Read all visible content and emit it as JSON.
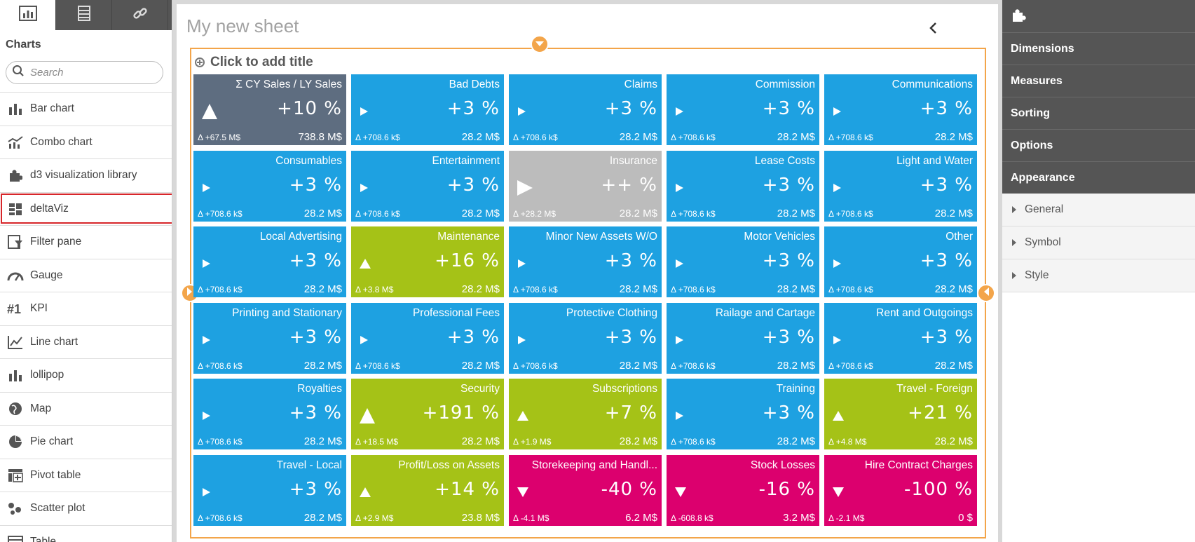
{
  "left_tabs": [
    {
      "icon": "chart-icon"
    },
    {
      "icon": "table-icon"
    },
    {
      "icon": "link-icon"
    }
  ],
  "charts_heading": "Charts",
  "search": {
    "placeholder": "Search"
  },
  "chart_list": [
    {
      "label": "Bar chart",
      "icon": "bar-chart-icon"
    },
    {
      "label": "Combo chart",
      "icon": "combo-chart-icon"
    },
    {
      "label": "d3 visualization library",
      "icon": "puzzle-icon"
    },
    {
      "label": "deltaViz",
      "icon": "deltaviz-icon",
      "selected": true
    },
    {
      "label": "Filter pane",
      "icon": "filter-pane-icon"
    },
    {
      "label": "Gauge",
      "icon": "gauge-icon"
    },
    {
      "label": "KPI",
      "icon": "kpi-icon"
    },
    {
      "label": "Line chart",
      "icon": "line-chart-icon"
    },
    {
      "label": "lollipop",
      "icon": "lollipop-icon"
    },
    {
      "label": "Map",
      "icon": "map-icon"
    },
    {
      "label": "Pie chart",
      "icon": "pie-chart-icon"
    },
    {
      "label": "Pivot table",
      "icon": "pivot-table-icon"
    },
    {
      "label": "Scatter plot",
      "icon": "scatter-plot-icon"
    },
    {
      "label": "Table",
      "icon": "table-list-icon"
    }
  ],
  "sheet": {
    "title": "My new sheet",
    "add_title": "Click to add title"
  },
  "colors": {
    "blue": "#1ea1e1",
    "green": "#a5c217",
    "magenta": "#dc006e",
    "slate": "#5e6d80",
    "grey": "#bcbcbc",
    "handle": "#f3a54a"
  },
  "tiles": [
    {
      "name": "Σ CY Sales / LY Sales",
      "pct": "+10 %",
      "delta": "Δ +67.5 M$",
      "value": "738.8 M$",
      "color": "slate",
      "symbol": "up-big"
    },
    {
      "name": "Bad Debts",
      "pct": "+3 %",
      "delta": "Δ +708.6 k$",
      "value": "28.2 M$",
      "color": "blue",
      "symbol": "right"
    },
    {
      "name": "Claims",
      "pct": "+3 %",
      "delta": "Δ +708.6 k$",
      "value": "28.2 M$",
      "color": "blue",
      "symbol": "right"
    },
    {
      "name": "Commission",
      "pct": "+3 %",
      "delta": "Δ +708.6 k$",
      "value": "28.2 M$",
      "color": "blue",
      "symbol": "right"
    },
    {
      "name": "Communications",
      "pct": "+3 %",
      "delta": "Δ +708.6 k$",
      "value": "28.2 M$",
      "color": "blue",
      "symbol": "right"
    },
    {
      "name": "Consumables",
      "pct": "+3 %",
      "delta": "Δ +708.6 k$",
      "value": "28.2 M$",
      "color": "blue",
      "symbol": "right"
    },
    {
      "name": "Entertainment",
      "pct": "+3 %",
      "delta": "Δ +708.6 k$",
      "value": "28.2 M$",
      "color": "blue",
      "symbol": "right"
    },
    {
      "name": "Insurance",
      "pct": "++ %",
      "delta": "Δ +28.2 M$",
      "value": "28.2 M$",
      "color": "grey",
      "symbol": "right-big"
    },
    {
      "name": "Lease Costs",
      "pct": "+3 %",
      "delta": "Δ +708.6 k$",
      "value": "28.2 M$",
      "color": "blue",
      "symbol": "right"
    },
    {
      "name": "Light and Water",
      "pct": "+3 %",
      "delta": "Δ +708.6 k$",
      "value": "28.2 M$",
      "color": "blue",
      "symbol": "right"
    },
    {
      "name": "Local Advertising",
      "pct": "+3 %",
      "delta": "Δ +708.6 k$",
      "value": "28.2 M$",
      "color": "blue",
      "symbol": "right"
    },
    {
      "name": "Maintenance",
      "pct": "+16 %",
      "delta": "Δ +3.8 M$",
      "value": "28.2 M$",
      "color": "green",
      "symbol": "up"
    },
    {
      "name": "Minor New Assets W/O",
      "pct": "+3 %",
      "delta": "Δ +708.6 k$",
      "value": "28.2 M$",
      "color": "blue",
      "symbol": "right"
    },
    {
      "name": "Motor Vehicles",
      "pct": "+3 %",
      "delta": "Δ +708.6 k$",
      "value": "28.2 M$",
      "color": "blue",
      "symbol": "right"
    },
    {
      "name": "Other",
      "pct": "+3 %",
      "delta": "Δ +708.6 k$",
      "value": "28.2 M$",
      "color": "blue",
      "symbol": "right"
    },
    {
      "name": "Printing and Stationary",
      "pct": "+3 %",
      "delta": "Δ +708.6 k$",
      "value": "28.2 M$",
      "color": "blue",
      "symbol": "right"
    },
    {
      "name": "Professional Fees",
      "pct": "+3 %",
      "delta": "Δ +708.6 k$",
      "value": "28.2 M$",
      "color": "blue",
      "symbol": "right"
    },
    {
      "name": "Protective Clothing",
      "pct": "+3 %",
      "delta": "Δ +708.6 k$",
      "value": "28.2 M$",
      "color": "blue",
      "symbol": "right"
    },
    {
      "name": "Railage and Cartage",
      "pct": "+3 %",
      "delta": "Δ +708.6 k$",
      "value": "28.2 M$",
      "color": "blue",
      "symbol": "right"
    },
    {
      "name": "Rent and Outgoings",
      "pct": "+3 %",
      "delta": "Δ +708.6 k$",
      "value": "28.2 M$",
      "color": "blue",
      "symbol": "right"
    },
    {
      "name": "Royalties",
      "pct": "+3 %",
      "delta": "Δ +708.6 k$",
      "value": "28.2 M$",
      "color": "blue",
      "symbol": "right"
    },
    {
      "name": "Security",
      "pct": "+191 %",
      "delta": "Δ +18.5 M$",
      "value": "28.2 M$",
      "color": "green",
      "symbol": "up-big"
    },
    {
      "name": "Subscriptions",
      "pct": "+7 %",
      "delta": "Δ +1.9 M$",
      "value": "28.2 M$",
      "color": "green",
      "symbol": "up"
    },
    {
      "name": "Training",
      "pct": "+3 %",
      "delta": "Δ +708.6 k$",
      "value": "28.2 M$",
      "color": "blue",
      "symbol": "right"
    },
    {
      "name": "Travel - Foreign",
      "pct": "+21 %",
      "delta": "Δ +4.8 M$",
      "value": "28.2 M$",
      "color": "green",
      "symbol": "up"
    },
    {
      "name": "Travel - Local",
      "pct": "+3 %",
      "delta": "Δ +708.6 k$",
      "value": "28.2 M$",
      "color": "blue",
      "symbol": "right"
    },
    {
      "name": "Profit/Loss on Assets",
      "pct": "+14 %",
      "delta": "Δ +2.9 M$",
      "value": "23.8 M$",
      "color": "green",
      "symbol": "up"
    },
    {
      "name": "Storekeeping and Handl...",
      "pct": "-40 %",
      "delta": "Δ -4.1 M$",
      "value": "6.2 M$",
      "color": "magenta",
      "symbol": "down"
    },
    {
      "name": "Stock Losses",
      "pct": "-16 %",
      "delta": "Δ -608.8 k$",
      "value": "3.2 M$",
      "color": "magenta",
      "symbol": "down"
    },
    {
      "name": "Hire Contract Charges",
      "pct": "-100 %",
      "delta": "Δ -2.1 M$",
      "value": "0 $",
      "color": "magenta",
      "symbol": "down"
    }
  ],
  "right_panel": {
    "header_icon": "puzzle-icon",
    "sections": [
      "Dimensions",
      "Measures",
      "Sorting",
      "Options",
      "Appearance"
    ],
    "subsections": [
      "General",
      "Symbol",
      "Style"
    ]
  }
}
